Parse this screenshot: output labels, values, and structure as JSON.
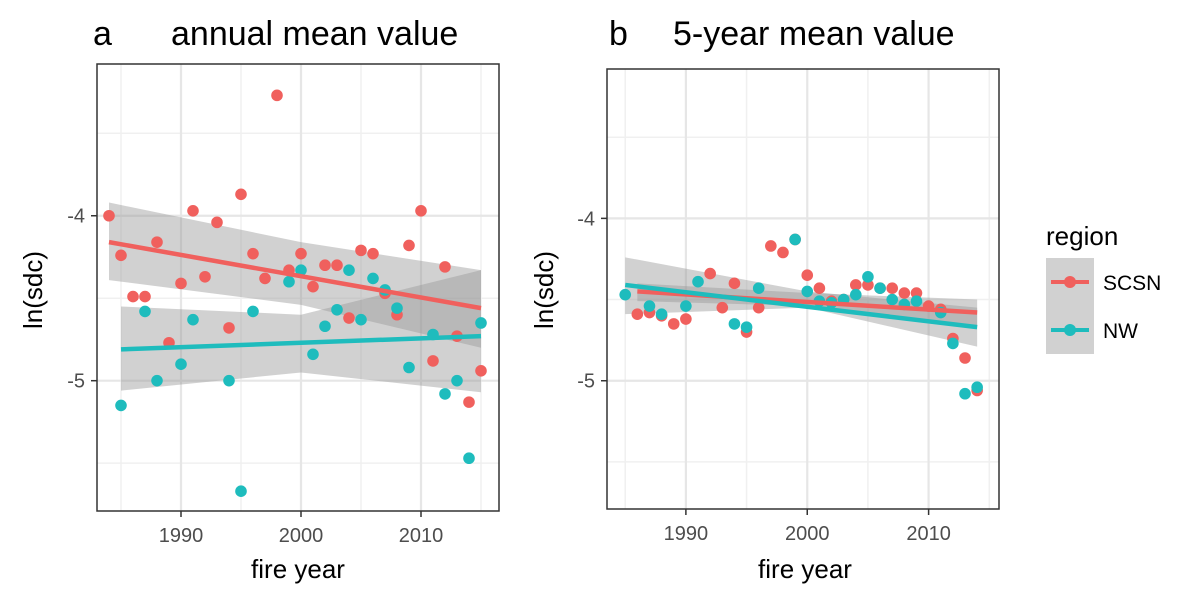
{
  "chart_data": [
    {
      "type": "scatter",
      "panel_letter": "a",
      "title": "annual mean value",
      "xlabel": "fire year",
      "ylabel": "ln(sdc)",
      "xlim": [
        1983,
        2016.5
      ],
      "ylim": [
        -5.79,
        -3.08
      ],
      "xticks": [
        1990,
        2000,
        2010
      ],
      "xtick_labels": [
        "1990",
        "2000",
        "2010"
      ],
      "yticks": [
        -4,
        -5
      ],
      "ytick_labels": [
        "-4",
        "-5"
      ],
      "grid": true,
      "series": [
        {
          "name": "SCSN",
          "color": "#f0605d",
          "x": [
            1984,
            1985,
            1986,
            1987,
            1988,
            1989,
            1990,
            1991,
            1992,
            1993,
            1994,
            1995,
            1996,
            1997,
            1998,
            1999,
            2000,
            2001,
            2002,
            2003,
            2004,
            2005,
            2006,
            2007,
            2008,
            2009,
            2010,
            2011,
            2012,
            2013,
            2014,
            2015
          ],
          "y": [
            -4.0,
            -4.24,
            -4.49,
            -4.49,
            -4.16,
            -4.77,
            -4.41,
            -3.97,
            -4.37,
            -4.04,
            -4.68,
            -3.87,
            -4.23,
            -4.38,
            -3.27,
            -4.33,
            -4.23,
            -4.43,
            -4.3,
            -4.3,
            -4.62,
            -4.21,
            -4.23,
            -4.47,
            -4.6,
            -4.18,
            -3.97,
            -4.88,
            -4.31,
            -4.73,
            -5.13,
            -4.94
          ],
          "trend": {
            "x": [
              1984,
              2015
            ],
            "y": [
              -4.16,
              -4.56
            ]
          },
          "confidence_band": {
            "x": [
              1984,
              2000,
              2015
            ],
            "upper": [
              -3.92,
              -4.16,
              -4.33
            ],
            "lower": [
              -4.39,
              -4.54,
              -4.8
            ]
          }
        },
        {
          "name": "NW",
          "color": "#1ebcbd",
          "x": [
            1985,
            1987,
            1988,
            1990,
            1991,
            1994,
            1995,
            1996,
            1999,
            2000,
            2001,
            2002,
            2003,
            2004,
            2005,
            2006,
            2007,
            2008,
            2009,
            2011,
            2012,
            2013,
            2014,
            2015
          ],
          "y": [
            -5.15,
            -4.58,
            -5.0,
            -4.9,
            -4.63,
            -5.0,
            -5.67,
            -4.58,
            -4.4,
            -4.33,
            -4.84,
            -4.67,
            -4.57,
            -4.33,
            -4.63,
            -4.38,
            -4.45,
            -4.56,
            -4.92,
            -4.72,
            -5.08,
            -5.0,
            -5.47,
            -4.65
          ],
          "trend": {
            "x": [
              1985,
              2015
            ],
            "y": [
              -4.81,
              -4.73
            ]
          },
          "confidence_band": {
            "x": [
              1985,
              2000,
              2015
            ],
            "upper": [
              -4.55,
              -4.6,
              -4.33
            ],
            "lower": [
              -5.06,
              -4.95,
              -5.07
            ]
          }
        }
      ]
    },
    {
      "type": "scatter",
      "panel_letter": "b",
      "title": "5-year mean value",
      "xlabel": "fire year",
      "ylabel": "ln(sdc)",
      "xlim": [
        1983.5,
        2015.8
      ],
      "ylim": [
        -5.79,
        -3.08
      ],
      "xticks": [
        1990,
        2000,
        2010
      ],
      "xtick_labels": [
        "1990",
        "2000",
        "2010"
      ],
      "yticks": [
        -4,
        -5
      ],
      "ytick_labels": [
        "-4",
        "-5"
      ],
      "grid": true,
      "series": [
        {
          "name": "SCSN",
          "color": "#f0605d",
          "x": [
            1986,
            1987,
            1988,
            1989,
            1990,
            1992,
            1993,
            1994,
            1995,
            1996,
            1997,
            1998,
            1999,
            2000,
            2001,
            2002,
            2003,
            2004,
            2005,
            2006,
            2007,
            2008,
            2009,
            2010,
            2011,
            2012,
            2013,
            2014
          ],
          "y": [
            -4.59,
            -4.58,
            -4.6,
            -4.65,
            -4.62,
            -4.34,
            -4.55,
            -4.4,
            -4.7,
            -4.55,
            -4.17,
            -4.21,
            -4.13,
            -4.35,
            -4.43,
            -4.51,
            -4.5,
            -4.41,
            -4.41,
            -4.43,
            -4.43,
            -4.46,
            -4.46,
            -4.54,
            -4.56,
            -4.74,
            -4.86,
            -5.06
          ],
          "trend": {
            "x": [
              1986,
              2014
            ],
            "y": [
              -4.45,
              -4.58
            ]
          },
          "confidence_band": {
            "x": [
              1986,
              2000,
              2014
            ],
            "upper": [
              -4.4,
              -4.46,
              -4.5
            ],
            "lower": [
              -4.51,
              -4.54,
              -4.66
            ]
          }
        },
        {
          "name": "NW",
          "color": "#1ebcbd",
          "x": [
            1985,
            1987,
            1988,
            1990,
            1991,
            1994,
            1995,
            1996,
            1999,
            2000,
            2001,
            2002,
            2003,
            2004,
            2005,
            2006,
            2007,
            2008,
            2009,
            2011,
            2012,
            2013,
            2014
          ],
          "y": [
            -4.47,
            -4.54,
            -4.59,
            -4.54,
            -4.39,
            -4.65,
            -4.67,
            -4.43,
            -4.13,
            -4.45,
            -4.51,
            -4.52,
            -4.5,
            -4.47,
            -4.36,
            -4.43,
            -4.5,
            -4.53,
            -4.51,
            -4.58,
            -4.77,
            -5.08,
            -5.04
          ],
          "trend": {
            "x": [
              1985,
              2014
            ],
            "y": [
              -4.41,
              -4.67
            ]
          },
          "confidence_band": {
            "x": [
              1985,
              2000,
              2014
            ],
            "upper": [
              -4.24,
              -4.45,
              -4.55
            ],
            "lower": [
              -4.59,
              -4.55,
              -4.79
            ]
          }
        }
      ]
    }
  ],
  "legend": {
    "title": "region",
    "position": "right",
    "items": [
      {
        "label": "SCSN",
        "color": "#f0605d"
      },
      {
        "label": "NW",
        "color": "#1ebcbd"
      }
    ]
  }
}
